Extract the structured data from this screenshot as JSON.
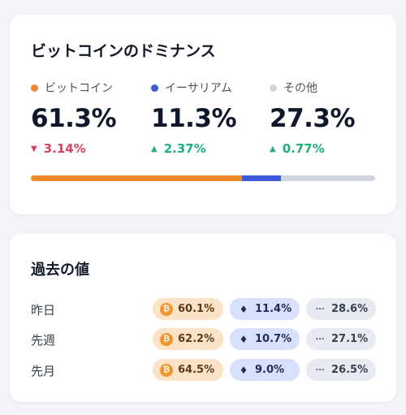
{
  "dominance": {
    "title": "ビットコインのドミナンス",
    "assets": [
      {
        "name": "ビットコイン",
        "color": "#ee8a2a",
        "value": "61.3%",
        "change": "3.14%",
        "direction": "down",
        "share": 61.3
      },
      {
        "name": "イーサリアム",
        "color": "#3b5bdb",
        "value": "11.3%",
        "change": "2.37%",
        "direction": "up",
        "share": 11.3
      },
      {
        "name": "その他",
        "color": "#cfd5df",
        "value": "27.3%",
        "change": "0.77%",
        "direction": "up",
        "share": 27.3
      }
    ]
  },
  "history": {
    "title": "過去の値",
    "rows": [
      {
        "label": "昨日",
        "btc": "60.1%",
        "eth": "11.4%",
        "other": "28.6%"
      },
      {
        "label": "先週",
        "btc": "62.2%",
        "eth": "10.7%",
        "other": "27.1%"
      },
      {
        "label": "先月",
        "btc": "64.5%",
        "eth": "9.0%",
        "other": "26.5%"
      }
    ],
    "icons": {
      "btc": "bitcoin-icon",
      "eth": "ethereum-icon",
      "other": "ellipsis-icon"
    }
  }
}
